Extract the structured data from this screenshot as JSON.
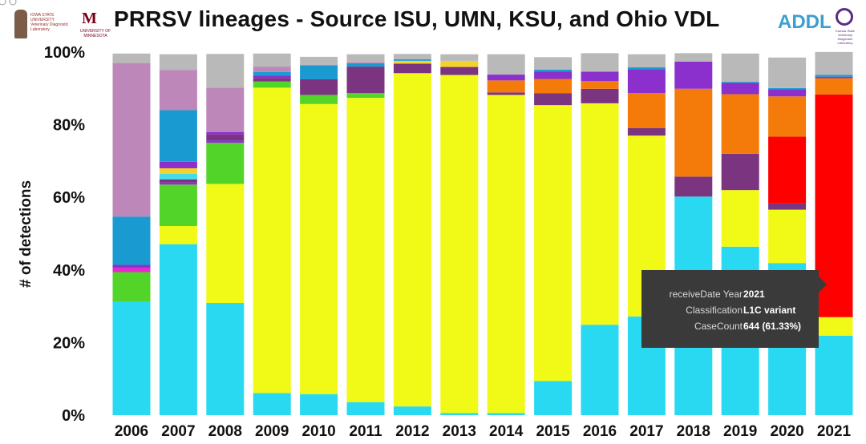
{
  "chart_data": {
    "type": "bar",
    "stacked": "percent",
    "title": "PRRSV lineages - Source ISU, UMN, KSU, and Ohio VDL",
    "ylabel": "# of detections",
    "xlabel": "",
    "ylim": [
      0,
      100
    ],
    "yticks": [
      "0%",
      "20%",
      "40%",
      "60%",
      "80%",
      "100%"
    ],
    "categories": [
      "2006",
      "2007",
      "2008",
      "2009",
      "2010",
      "2011",
      "2012",
      "2013",
      "2014",
      "2015",
      "2016",
      "2017",
      "2018",
      "2019",
      "2020",
      "2021"
    ],
    "series": [
      {
        "key": "cyan",
        "color": "#29d9f1",
        "values": [
          31.2,
          47.1,
          30.9,
          6.1,
          5.8,
          3.6,
          2.4,
          0.6,
          0.6,
          9.4,
          24.9,
          27.2,
          60.2,
          46.4,
          41.9,
          21.9
        ]
      },
      {
        "key": "yellow",
        "color": "#f0fa16",
        "values": [
          0,
          5,
          32.8,
          84.1,
          79.9,
          83.8,
          91.8,
          93.1,
          87.6,
          76.0,
          61.0,
          49.8,
          0,
          15.6,
          14.7,
          5.1
        ]
      },
      {
        "key": "green",
        "color": "#52d428",
        "values": [
          8.2,
          11.4,
          11.3,
          1.7,
          2.5,
          1.3,
          0,
          0,
          0,
          0,
          0,
          0,
          0,
          0,
          0,
          0
        ]
      },
      {
        "key": "magenta",
        "color": "#e628cf",
        "values": [
          1.2,
          0,
          0,
          0,
          0,
          0,
          0,
          0,
          0,
          0,
          0,
          0,
          0,
          0,
          0,
          0
        ]
      },
      {
        "key": "violet",
        "color": "#8a32c9",
        "values": [
          0.8,
          0.6,
          0.7,
          0,
          0,
          0,
          0,
          0,
          0,
          0,
          0,
          0,
          0,
          0,
          0,
          0
        ]
      },
      {
        "key": "plum",
        "color": "#7b347f",
        "values": [
          0,
          0.8,
          1.6,
          0.9,
          4.3,
          7.3,
          2.6,
          2.2,
          0.7,
          3.3,
          4.0,
          2.1,
          5.5,
          10.0,
          1.7,
          0
        ]
      },
      {
        "key": "aqua",
        "color": "#45dbe8",
        "values": [
          0,
          1.6,
          0,
          0,
          0,
          0,
          0,
          0,
          0,
          0,
          0,
          0,
          0,
          0,
          0,
          0
        ]
      },
      {
        "key": "gold",
        "color": "#f4d22a",
        "values": [
          0,
          1.5,
          0,
          0,
          0,
          0,
          0.8,
          1.7,
          0,
          0,
          0,
          0,
          0,
          0,
          0,
          0
        ]
      },
      {
        "key": "red",
        "color": "#ff0000",
        "values": [
          0,
          0,
          0,
          0,
          0,
          0,
          0,
          0,
          0,
          0,
          0,
          0,
          0,
          0,
          18.4,
          61.33
        ]
      },
      {
        "key": "orange",
        "color": "#f47a0a",
        "values": [
          0,
          0,
          0,
          0,
          0,
          0,
          0,
          0,
          3.3,
          3.9,
          2.1,
          9.6,
          24.2,
          16.4,
          11.1,
          4.5
        ]
      },
      {
        "key": "purple",
        "color": "#8b2fcd",
        "values": [
          0,
          1.8,
          0.7,
          0.7,
          0,
          0,
          0,
          0,
          1.6,
          2.0,
          2.6,
          6.6,
          7.5,
          3.1,
          2.0,
          0.4
        ]
      },
      {
        "key": "blue",
        "color": "#199bd1",
        "values": [
          13.3,
          14.2,
          0,
          1.0,
          3.9,
          0.9,
          0.4,
          0,
          0,
          0.6,
          0,
          0.5,
          0,
          0.3,
          0.3,
          0.5
        ]
      },
      {
        "key": "mauve",
        "color": "#bd87ba",
        "values": [
          42.3,
          11.1,
          12.2,
          1.5,
          0,
          0.3,
          0,
          0,
          0,
          0,
          0,
          0,
          0,
          0,
          0,
          0
        ]
      },
      {
        "key": "gray",
        "color": "#b9b9b9",
        "values": [
          2.6,
          4.3,
          9.3,
          3.6,
          2.3,
          2.2,
          1.5,
          1.8,
          5.6,
          3.4,
          5.1,
          3.6,
          2.3,
          7.8,
          8.4,
          6.3
        ]
      }
    ]
  },
  "tooltip": {
    "rows": [
      {
        "label": "receiveDate Year",
        "value": "2021"
      },
      {
        "label": "Classification",
        "value": "L1C variant"
      },
      {
        "label": "CaseCount",
        "value": "644 (61.33%)"
      }
    ]
  },
  "logos": {
    "isu": "IOWA STATE UNIVERSITY Veterinary Diagnostic Laboratory",
    "umn_mark": "M",
    "umn": "UNIVERSITY OF MINNESOTA",
    "addl": "ADDL",
    "ksu": "Kansas State Veterinary Diagnostic Laboratory"
  },
  "colors": {
    "tooltip_bg": "#3a3a3a",
    "text": "#111111"
  }
}
